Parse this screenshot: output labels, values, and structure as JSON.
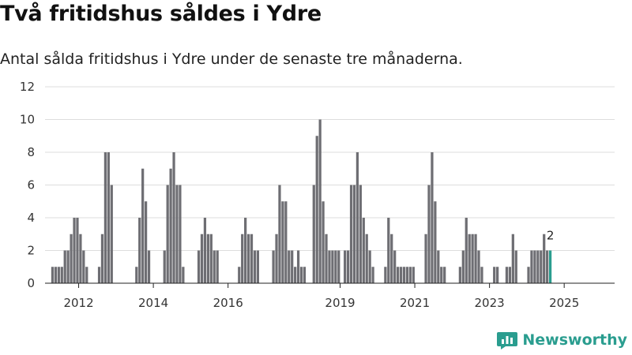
{
  "header": {
    "title": "Två fritidshus såldes i Ydre",
    "subtitle": "Antal sålda fritidshus i Ydre under de senaste tre månaderna."
  },
  "brand": {
    "name": "Newsworthy",
    "logo_icon": "bar-chart-icon"
  },
  "colors": {
    "bar": "#6e6e73",
    "highlight": "#2a9d8f",
    "brand": "#2a9d8f"
  },
  "chart_data": {
    "type": "bar",
    "title": "Två fritidshus såldes i Ydre",
    "subtitle": "Antal sålda fritidshus i Ydre under de senaste tre månaderna.",
    "ylim": [
      0,
      12
    ],
    "yticks": [
      0,
      2,
      4,
      6,
      8,
      10,
      12
    ],
    "xlim": [
      2011.1,
      2026.35
    ],
    "xticks": [
      "2012",
      "2014",
      "2016",
      "2019",
      "2021",
      "2023",
      "2025"
    ],
    "grid": true,
    "x_start": 2011.3,
    "period_step": 0.0833,
    "values": [
      1,
      1,
      1,
      1,
      2,
      2,
      3,
      4,
      4,
      3,
      2,
      1,
      0,
      0,
      0,
      1,
      3,
      8,
      8,
      6,
      0,
      0,
      0,
      0,
      0,
      0,
      0,
      1,
      4,
      7,
      5,
      2,
      0,
      0,
      0,
      0,
      2,
      6,
      7,
      8,
      6,
      6,
      1,
      0,
      0,
      0,
      0,
      2,
      3,
      4,
      3,
      3,
      2,
      2,
      0,
      0,
      0,
      0,
      0,
      0,
      1,
      3,
      4,
      3,
      3,
      2,
      2,
      0,
      0,
      0,
      0,
      2,
      3,
      6,
      5,
      5,
      2,
      2,
      1,
      2,
      1,
      1,
      0,
      0,
      6,
      9,
      10,
      5,
      3,
      2,
      2,
      2,
      2,
      0,
      2,
      2,
      6,
      6,
      8,
      6,
      4,
      3,
      2,
      1,
      0,
      0,
      0,
      1,
      4,
      3,
      2,
      1,
      1,
      1,
      1,
      1,
      1,
      0,
      0,
      0,
      3,
      6,
      8,
      5,
      2,
      1,
      1,
      0,
      0,
      0,
      0,
      1,
      2,
      4,
      3,
      3,
      3,
      2,
      1,
      0,
      0,
      0,
      1,
      1,
      0,
      0,
      1,
      1,
      3,
      2,
      0,
      0,
      0,
      1,
      2,
      2,
      2,
      2,
      3,
      2,
      2
    ],
    "last_value_label": "2",
    "highlight_last": true
  }
}
